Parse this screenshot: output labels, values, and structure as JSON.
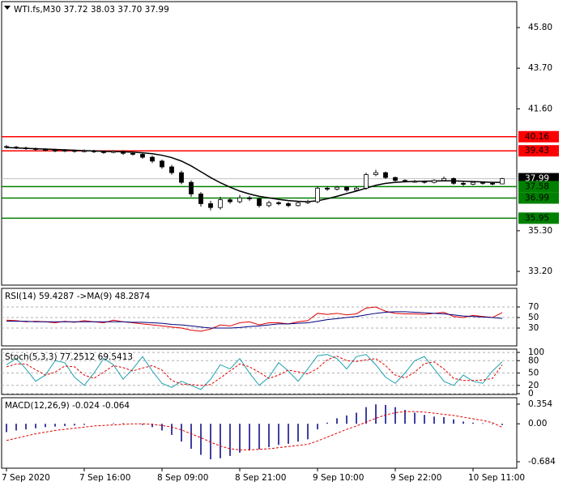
{
  "chart_data": [
    {
      "type": "candlestick",
      "title": "WTI.fs,M30  37.72 38.03 37.70 37.99",
      "categories": [
        "7 Sep 2020",
        null,
        null,
        null,
        null,
        null,
        null,
        null,
        "7 Sep 16:00",
        null,
        null,
        null,
        null,
        null,
        null,
        null,
        "8 Sep 09:00",
        null,
        null,
        null,
        null,
        null,
        null,
        null,
        "8 Sep 21:00",
        null,
        null,
        null,
        null,
        null,
        null,
        null,
        "9 Sep 10:00",
        null,
        null,
        null,
        null,
        null,
        null,
        null,
        "9 Sep 22:00",
        null,
        null,
        null,
        null,
        null,
        null,
        null,
        "10 Sep 11:00",
        null,
        null,
        null
      ],
      "open": [
        39.65,
        39.62,
        39.58,
        39.55,
        39.5,
        39.48,
        39.42,
        39.45,
        39.4,
        39.43,
        39.38,
        39.35,
        39.4,
        39.3,
        39.25,
        39.1,
        38.9,
        38.6,
        38.3,
        37.8,
        37.2,
        36.7,
        36.5,
        36.9,
        36.8,
        37.0,
        36.95,
        36.6,
        36.75,
        36.7,
        36.6,
        36.75,
        36.8,
        37.5,
        37.45,
        37.55,
        37.4,
        37.5,
        38.2,
        38.3,
        38.05,
        37.9,
        37.85,
        37.85,
        37.8,
        37.9,
        38.0,
        37.75,
        37.7,
        37.8,
        37.75,
        37.72
      ],
      "high": [
        39.72,
        39.68,
        39.64,
        39.6,
        39.56,
        39.54,
        39.52,
        39.5,
        39.5,
        39.48,
        39.44,
        39.46,
        39.45,
        39.36,
        39.3,
        39.18,
        38.98,
        38.7,
        38.4,
        37.9,
        37.3,
        36.85,
        37.05,
        37.0,
        37.15,
        37.1,
        37.02,
        36.85,
        36.82,
        36.78,
        36.82,
        36.9,
        37.6,
        37.58,
        37.62,
        37.6,
        37.58,
        38.3,
        38.45,
        38.36,
        38.1,
        37.96,
        37.92,
        37.9,
        37.96,
        38.1,
        38.05,
        37.82,
        37.86,
        37.85,
        37.8,
        38.03
      ],
      "low": [
        39.55,
        39.52,
        39.48,
        39.44,
        39.4,
        39.36,
        39.36,
        39.34,
        39.35,
        39.32,
        39.28,
        39.3,
        39.22,
        39.18,
        39.02,
        38.8,
        38.5,
        38.2,
        37.7,
        37.05,
        36.55,
        36.35,
        36.4,
        36.7,
        36.72,
        36.85,
        36.5,
        36.52,
        36.62,
        36.52,
        36.55,
        36.68,
        36.72,
        37.36,
        37.38,
        37.32,
        37.35,
        37.42,
        38.12,
        37.98,
        37.84,
        37.8,
        37.78,
        37.74,
        37.75,
        37.85,
        37.68,
        37.62,
        37.65,
        37.68,
        37.65,
        37.7
      ],
      "close": [
        39.62,
        39.58,
        39.55,
        39.5,
        39.48,
        39.42,
        39.45,
        39.4,
        39.43,
        39.38,
        39.35,
        39.4,
        39.3,
        39.25,
        39.1,
        38.9,
        38.6,
        38.3,
        37.8,
        37.2,
        36.7,
        36.5,
        36.9,
        36.8,
        37.0,
        36.95,
        36.6,
        36.75,
        36.7,
        36.6,
        36.75,
        36.8,
        37.5,
        37.45,
        37.55,
        37.4,
        37.5,
        38.2,
        38.3,
        38.05,
        37.9,
        37.85,
        37.85,
        37.8,
        37.9,
        38.0,
        37.75,
        37.7,
        37.8,
        37.75,
        37.72,
        37.99
      ],
      "up_color": "#ffffff",
      "down_color": "#000000",
      "series": [
        {
          "color": "#000000",
          "values": [
            39.6,
            39.58,
            39.56,
            39.54,
            39.52,
            39.5,
            39.48,
            39.46,
            39.44,
            39.42,
            39.4,
            39.39,
            39.38,
            39.36,
            39.33,
            39.28,
            39.2,
            39.08,
            38.9,
            38.65,
            38.35,
            38.05,
            37.78,
            37.55,
            37.35,
            37.2,
            37.08,
            37.0,
            36.92,
            36.86,
            36.82,
            36.8,
            36.85,
            36.95,
            37.08,
            37.22,
            37.35,
            37.5,
            37.65,
            37.75,
            37.8,
            37.83,
            37.85,
            37.86,
            37.87,
            37.88,
            37.88,
            37.86,
            37.84,
            37.82,
            37.8,
            37.8
          ]
        }
      ],
      "levels": [
        {
          "value": 40.16,
          "color": "#ff0000",
          "text_color": "#000000"
        },
        {
          "value": 39.43,
          "color": "#ff0000",
          "text_color": "#000000"
        },
        {
          "value": 37.99,
          "color": "#c0c0c0",
          "fill": "#000000",
          "text_color": "#ffffff"
        },
        {
          "value": 37.58,
          "color": "#008000",
          "text_color": "#000000"
        },
        {
          "value": 36.99,
          "color": "#008000",
          "text_color": "#000000"
        },
        {
          "value": 35.95,
          "color": "#008000",
          "text_color": "#000000"
        }
      ],
      "ylim": [
        32.49,
        47.14
      ],
      "yticks": [
        {
          "value": 45.8,
          "label": "45.80"
        },
        {
          "value": 43.7,
          "label": "43.70"
        },
        {
          "value": 41.6,
          "label": "41.60"
        },
        {
          "value": 35.3,
          "label": "35.30"
        },
        {
          "value": 33.2,
          "label": "33.20"
        }
      ],
      "grid": false
    },
    {
      "type": "indicator",
      "title": "RSI(14) 59.4287 ->MA(9) 48.2874",
      "series": [
        {
          "color": "#e00000",
          "style": "line",
          "values": [
            45,
            44,
            42,
            43,
            42,
            40,
            43,
            41,
            44,
            42,
            40,
            45,
            42,
            40,
            38,
            36,
            34,
            32,
            30,
            26,
            24,
            28,
            36,
            34,
            40,
            42,
            36,
            40,
            40,
            38,
            42,
            44,
            58,
            56,
            58,
            55,
            57,
            68,
            70,
            62,
            58,
            57,
            57,
            56,
            58,
            60,
            52,
            50,
            54,
            52,
            50,
            59.4287
          ]
        },
        {
          "color": "#000080",
          "style": "line",
          "values": [
            43,
            43,
            43,
            42,
            42,
            42,
            42,
            42,
            42,
            42,
            42,
            42,
            42,
            41,
            41,
            40,
            39,
            37,
            36,
            34,
            32,
            30,
            30,
            30,
            31,
            33,
            34,
            36,
            38,
            38,
            39,
            40,
            43,
            46,
            48,
            50,
            52,
            55,
            58,
            60,
            61,
            61,
            60,
            59,
            58,
            57,
            55,
            53,
            52,
            51,
            50,
            48.2874
          ]
        }
      ],
      "ylim": [
        -3.8,
        105.4
      ],
      "yticks": [
        70,
        50,
        30
      ],
      "grid": true
    },
    {
      "type": "indicator",
      "title": "Stoch(5,3,3) 77.2512 69.5413",
      "series": [
        {
          "color": "#20a0b0",
          "style": "line",
          "values": [
            70,
            85,
            60,
            30,
            45,
            80,
            75,
            40,
            20,
            50,
            85,
            70,
            35,
            60,
            90,
            55,
            25,
            15,
            30,
            20,
            10,
            35,
            70,
            60,
            85,
            50,
            20,
            40,
            75,
            55,
            30,
            60,
            92,
            95,
            85,
            60,
            90,
            95,
            70,
            40,
            25,
            50,
            80,
            90,
            60,
            30,
            20,
            45,
            30,
            25,
            55,
            77.2512
          ]
        },
        {
          "color": "#e00000",
          "style": "dash",
          "values": [
            65,
            72,
            72,
            58,
            45,
            52,
            67,
            65,
            45,
            37,
            52,
            68,
            63,
            55,
            62,
            68,
            57,
            32,
            23,
            22,
            20,
            22,
            38,
            55,
            72,
            65,
            52,
            37,
            45,
            57,
            53,
            48,
            61,
            82,
            91,
            80,
            78,
            82,
            85,
            68,
            45,
            38,
            52,
            73,
            77,
            60,
            37,
            32,
            32,
            33,
            37,
            69.5413
          ]
        }
      ],
      "ylim": [
        -2,
        108
      ],
      "yticks": [
        100,
        80,
        50,
        20,
        0
      ],
      "grid": true
    },
    {
      "type": "indicator",
      "title": "MACD(12,26,9) -0.024 -0.064",
      "series": [
        {
          "color": "#000080",
          "style": "histogram",
          "values": [
            -0.15,
            -0.12,
            -0.1,
            -0.08,
            -0.06,
            -0.05,
            -0.04,
            -0.03,
            -0.02,
            0.0,
            0.0,
            0.01,
            0.01,
            0.0,
            -0.02,
            -0.06,
            -0.12,
            -0.2,
            -0.32,
            -0.45,
            -0.56,
            -0.64,
            -0.62,
            -0.58,
            -0.52,
            -0.48,
            -0.46,
            -0.42,
            -0.38,
            -0.36,
            -0.32,
            -0.28,
            -0.1,
            0.02,
            0.1,
            0.15,
            0.2,
            0.3,
            0.35,
            0.34,
            0.3,
            0.25,
            0.2,
            0.16,
            0.13,
            0.12,
            0.08,
            0.04,
            0.02,
            0.01,
            -0.01,
            -0.024
          ]
        },
        {
          "color": "#e00000",
          "style": "dash",
          "values": [
            -0.3,
            -0.26,
            -0.22,
            -0.18,
            -0.15,
            -0.12,
            -0.1,
            -0.08,
            -0.06,
            -0.04,
            -0.03,
            -0.02,
            -0.01,
            0.0,
            0.0,
            -0.01,
            -0.03,
            -0.06,
            -0.11,
            -0.18,
            -0.25,
            -0.33,
            -0.4,
            -0.45,
            -0.47,
            -0.47,
            -0.46,
            -0.45,
            -0.43,
            -0.41,
            -0.39,
            -0.37,
            -0.31,
            -0.24,
            -0.17,
            -0.1,
            -0.04,
            0.03,
            0.1,
            0.16,
            0.2,
            0.22,
            0.22,
            0.21,
            0.19,
            0.17,
            0.15,
            0.12,
            0.09,
            0.06,
            0.02,
            -0.064
          ]
        }
      ],
      "ylim": [
        -0.8,
        0.47
      ],
      "yticks": [
        0.354,
        {
          "value": 0,
          "label": "0.00"
        },
        -0.684
      ],
      "grid": false
    }
  ]
}
